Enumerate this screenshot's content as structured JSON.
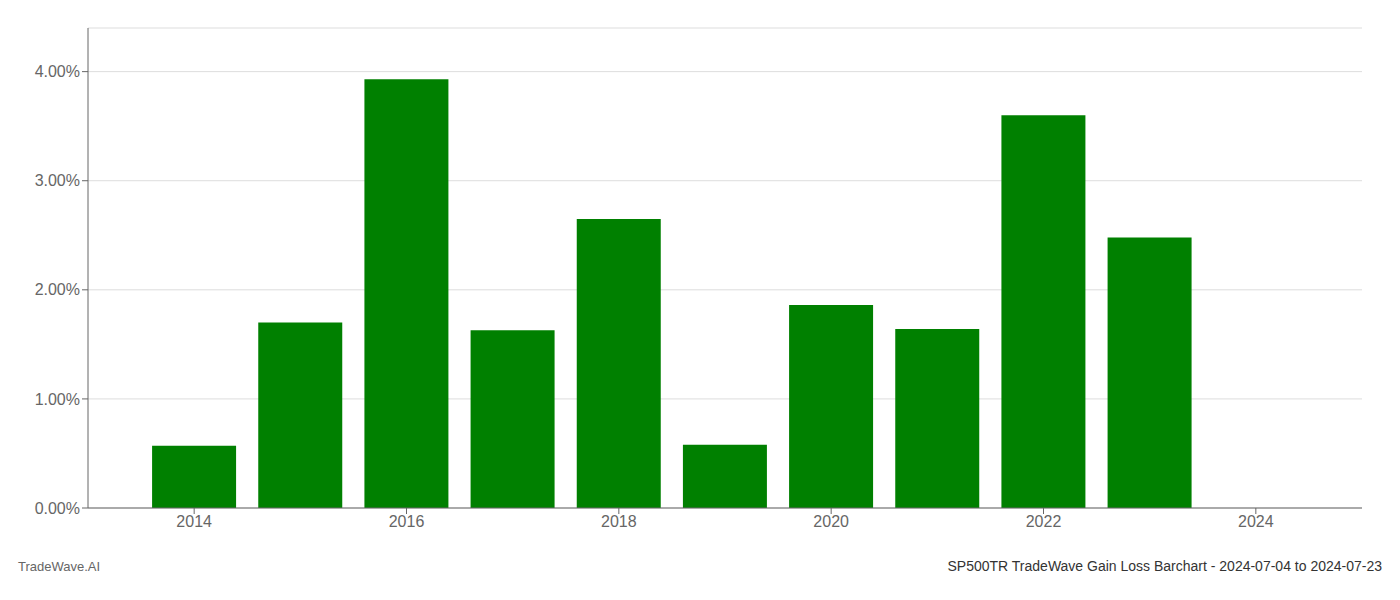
{
  "chart_data": {
    "type": "bar",
    "title": "SP500TR TradeWave Gain Loss Barchart - 2024-07-04 to 2024-07-23",
    "annotations": [
      "TradeWave.AI"
    ],
    "x": [
      2014,
      2015,
      2016,
      2017,
      2018,
      2019,
      2020,
      2021,
      2022,
      2023
    ],
    "values": [
      0.0057,
      0.017,
      0.0393,
      0.0163,
      0.0265,
      0.0058,
      0.0186,
      0.0164,
      0.036,
      0.0248
    ],
    "color": "#008000",
    "xlim": [
      2013.0,
      2025.0
    ],
    "xticks": [
      2014,
      2016,
      2018,
      2020,
      2022,
      2024
    ],
    "ylim": [
      0,
      0.044
    ],
    "yticks": [
      {
        "value": 0.0,
        "label": "0.00%"
      },
      {
        "value": 0.01,
        "label": "1.00%"
      },
      {
        "value": 0.02,
        "label": "2.00%"
      },
      {
        "value": 0.03,
        "label": "3.00%"
      },
      {
        "value": 0.04,
        "label": "4.00%"
      }
    ],
    "grid": "y"
  }
}
